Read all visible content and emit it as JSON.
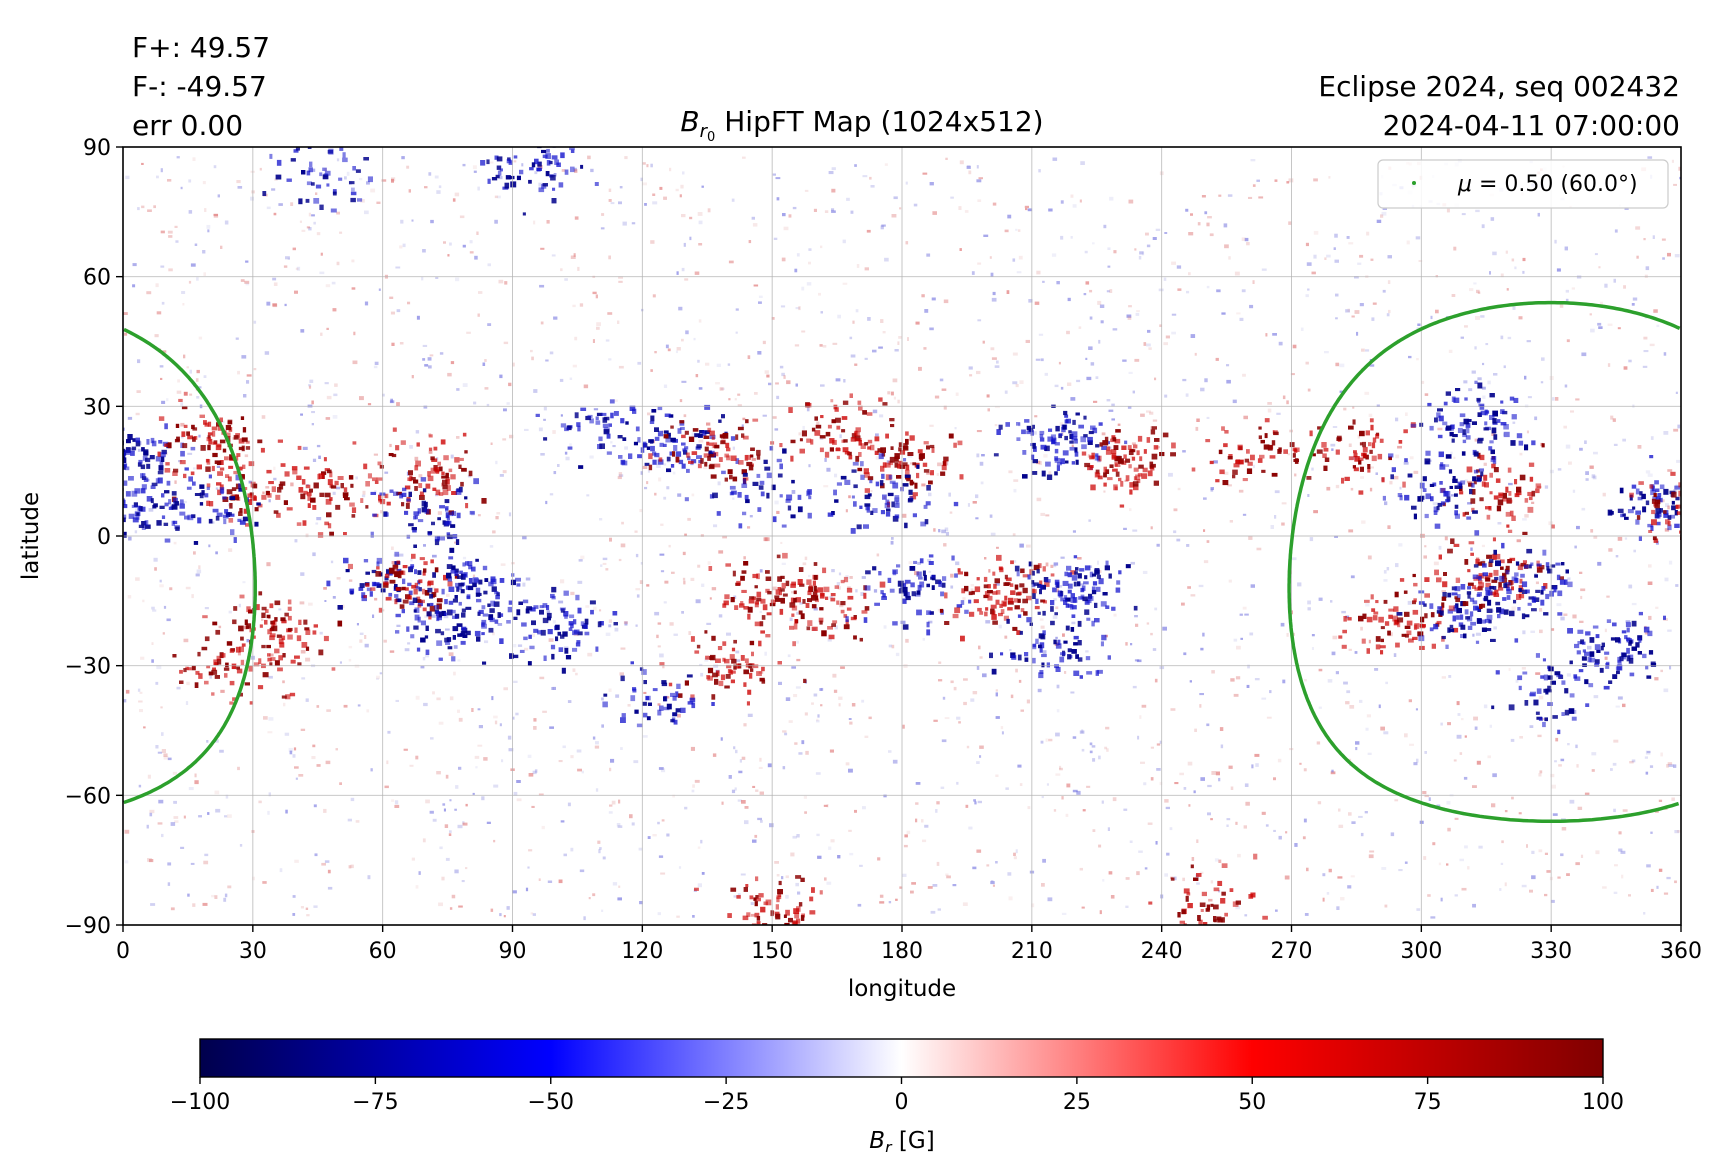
{
  "header": {
    "flux_pos": "F+: 49.57",
    "flux_neg": "F-: -49.57",
    "err": "err 0.00",
    "obs_line1": "Eclipse 2024, seq 002432",
    "obs_line2": "2024-04-11 07:00:00"
  },
  "chart_data": {
    "type": "heatmap",
    "title_main": "B",
    "title_sub": "r",
    "title_subsub": "0",
    "title_rest": " HipFT Map (1024x512)",
    "xlabel": "longitude",
    "ylabel": "latitude",
    "xlim": [
      0,
      360
    ],
    "ylim": [
      -90,
      90
    ],
    "xticks": [
      "0",
      "30",
      "60",
      "90",
      "120",
      "150",
      "180",
      "210",
      "240",
      "270",
      "300",
      "330",
      "360"
    ],
    "yticks": [
      "90",
      "60",
      "30",
      "0",
      "−30",
      "−60",
      "−90"
    ],
    "grid": true,
    "legend": {
      "placement": "top-right",
      "label_mu": "μ",
      "label_rest": " = 0.50 (60.0°)",
      "color": "#2ca02c"
    },
    "contour": {
      "mu": 0.5,
      "center_lon": 330,
      "center_lat": -6,
      "angle_deg": 60
    },
    "colorbar": {
      "cmap": "seismic",
      "vmin": -100,
      "vmax": 100,
      "ticks": [
        "−100",
        "−75",
        "−50",
        "−25",
        "0",
        "25",
        "50",
        "75",
        "100"
      ],
      "label_main": "B",
      "label_sub": "r",
      "label_unit": " [G]"
    },
    "active_regions": [
      {
        "lon": 3,
        "lat": 20,
        "sign": -1,
        "strength": 0.7
      },
      {
        "lon": 2,
        "lat": 9,
        "sign": -1,
        "strength": 0.9
      },
      {
        "lon": 20,
        "lat": 22,
        "sign": 1,
        "strength": 0.9
      },
      {
        "lon": 28,
        "lat": 12,
        "sign": 1,
        "strength": 0.7
      },
      {
        "lon": 18,
        "lat": 8,
        "sign": -1,
        "strength": 0.6
      },
      {
        "lon": 47,
        "lat": 10,
        "sign": 1,
        "strength": 0.7
      },
      {
        "lon": 70,
        "lat": 15,
        "sign": 1,
        "strength": 0.8
      },
      {
        "lon": 70,
        "lat": 5,
        "sign": -1,
        "strength": 0.7
      },
      {
        "lon": 110,
        "lat": 25,
        "sign": -1,
        "strength": 0.5
      },
      {
        "lon": 128,
        "lat": 22,
        "sign": -1,
        "strength": 0.8
      },
      {
        "lon": 138,
        "lat": 20,
        "sign": 1,
        "strength": 0.8
      },
      {
        "lon": 148,
        "lat": 12,
        "sign": -1,
        "strength": 0.5
      },
      {
        "lon": 165,
        "lat": 25,
        "sign": 1,
        "strength": 0.7
      },
      {
        "lon": 180,
        "lat": 18,
        "sign": 1,
        "strength": 0.8
      },
      {
        "lon": 175,
        "lat": 10,
        "sign": -1,
        "strength": 0.7
      },
      {
        "lon": 215,
        "lat": 22,
        "sign": -1,
        "strength": 1.0
      },
      {
        "lon": 232,
        "lat": 18,
        "sign": 1,
        "strength": 1.0
      },
      {
        "lon": 262,
        "lat": 20,
        "sign": 1,
        "strength": 0.6
      },
      {
        "lon": 285,
        "lat": 20,
        "sign": 1,
        "strength": 0.6
      },
      {
        "lon": 312,
        "lat": 26,
        "sign": -1,
        "strength": 0.9
      },
      {
        "lon": 318,
        "lat": 10,
        "sign": 1,
        "strength": 0.7
      },
      {
        "lon": 305,
        "lat": 12,
        "sign": -1,
        "strength": 0.7
      },
      {
        "lon": 355,
        "lat": 8,
        "sign": -1,
        "strength": 0.8
      },
      {
        "lon": 360,
        "lat": 8,
        "sign": 1,
        "strength": 0.7
      },
      {
        "lon": 35,
        "lat": -20,
        "sign": 1,
        "strength": 0.8
      },
      {
        "lon": 25,
        "lat": -30,
        "sign": 1,
        "strength": 0.7
      },
      {
        "lon": 60,
        "lat": -10,
        "sign": -1,
        "strength": 0.6
      },
      {
        "lon": 65,
        "lat": -12,
        "sign": 1,
        "strength": 0.7
      },
      {
        "lon": 82,
        "lat": -12,
        "sign": -1,
        "strength": 0.9
      },
      {
        "lon": 75,
        "lat": -20,
        "sign": -1,
        "strength": 0.7
      },
      {
        "lon": 100,
        "lat": -20,
        "sign": -1,
        "strength": 0.8
      },
      {
        "lon": 140,
        "lat": -30,
        "sign": 1,
        "strength": 0.7
      },
      {
        "lon": 148,
        "lat": -12,
        "sign": 1,
        "strength": 0.7
      },
      {
        "lon": 160,
        "lat": -15,
        "sign": 1,
        "strength": 0.8
      },
      {
        "lon": 182,
        "lat": -12,
        "sign": -1,
        "strength": 0.7
      },
      {
        "lon": 203,
        "lat": -13,
        "sign": 1,
        "strength": 1.0
      },
      {
        "lon": 220,
        "lat": -12,
        "sign": -1,
        "strength": 1.0
      },
      {
        "lon": 215,
        "lat": -25,
        "sign": -1,
        "strength": 0.7
      },
      {
        "lon": 125,
        "lat": -38,
        "sign": -1,
        "strength": 0.5
      },
      {
        "lon": 295,
        "lat": -18,
        "sign": 1,
        "strength": 0.8
      },
      {
        "lon": 310,
        "lat": -18,
        "sign": -1,
        "strength": 0.8
      },
      {
        "lon": 315,
        "lat": -8,
        "sign": 1,
        "strength": 0.9
      },
      {
        "lon": 322,
        "lat": -10,
        "sign": -1,
        "strength": 0.8
      },
      {
        "lon": 345,
        "lat": -25,
        "sign": -1,
        "strength": 0.8
      },
      {
        "lon": 330,
        "lat": -35,
        "sign": -1,
        "strength": 0.6
      },
      {
        "lon": 95,
        "lat": 86,
        "sign": -1,
        "strength": 0.7
      },
      {
        "lon": 45,
        "lat": 84,
        "sign": -1,
        "strength": 0.5
      },
      {
        "lon": 150,
        "lat": -87,
        "sign": 1,
        "strength": 0.7
      },
      {
        "lon": 250,
        "lat": -85,
        "sign": 1,
        "strength": 0.5
      }
    ]
  }
}
